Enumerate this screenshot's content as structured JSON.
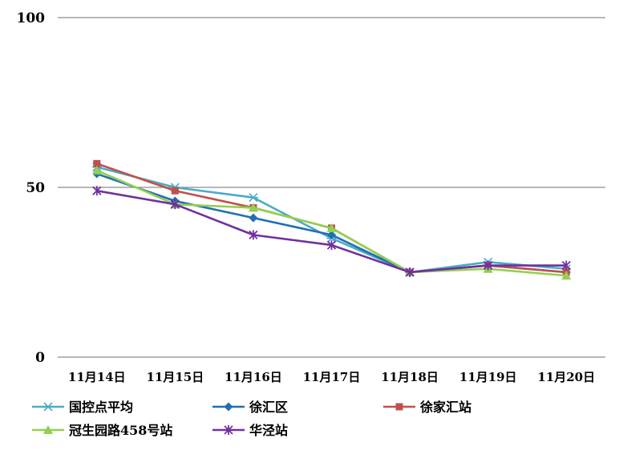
{
  "chart_data": {
    "type": "line",
    "categories": [
      "11月14日",
      "11月15日",
      "11月16日",
      "11月17日",
      "11月18日",
      "11月19日",
      "11月20日"
    ],
    "ylim": [
      0,
      100
    ],
    "yticks": [
      "0",
      "50",
      "100"
    ],
    "grid": true,
    "legend_position": "bottom",
    "series": [
      {
        "name": "国控点平均",
        "color": "#4bacc6",
        "marker": "asterisk",
        "values": [
          56,
          50,
          47,
          35,
          25,
          28,
          26
        ]
      },
      {
        "name": "徐汇区",
        "color": "#1f6fb5",
        "marker": "diamond",
        "values": [
          54,
          46,
          41,
          36,
          25,
          27,
          25
        ]
      },
      {
        "name": "徐家汇站",
        "color": "#c0504d",
        "marker": "square",
        "values": [
          57,
          49,
          44,
          38,
          25,
          27,
          25
        ]
      },
      {
        "name": "冠生园路458号站",
        "color": "#92d050",
        "marker": "triangle",
        "values": [
          55,
          45,
          44,
          38,
          25,
          26,
          24
        ]
      },
      {
        "name": "华泾站",
        "color": "#7030a0",
        "marker": "star",
        "values": [
          49,
          45,
          36,
          33,
          25,
          27,
          27
        ]
      }
    ]
  }
}
